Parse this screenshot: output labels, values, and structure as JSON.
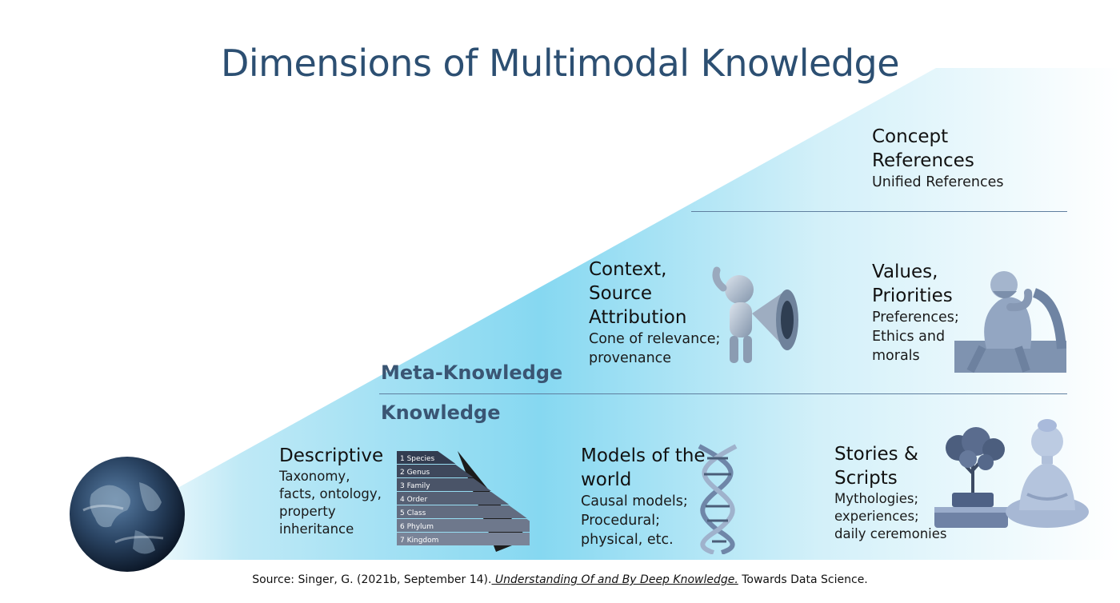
{
  "title": "Dimensions of Multimodal Knowledge",
  "levels": {
    "meta": "Meta-Knowledge",
    "knowledge": "Knowledge"
  },
  "blocks": {
    "concept": {
      "heading": "Concept\nReferences",
      "desc": "Unified References"
    },
    "context": {
      "heading": "Context,\nSource\nAttribution",
      "desc": "Cone of relevance;\nprovenance"
    },
    "values": {
      "heading": "Values,\nPriorities",
      "desc": "Preferences;\nEthics and\nmorals"
    },
    "descriptive": {
      "heading": "Descriptive",
      "desc": "Taxonomy,\nfacts, ontology,\nproperty\ninheritance"
    },
    "models": {
      "heading": "Models of the\nworld",
      "desc": "Causal models;\nProcedural;\nphysical, etc."
    },
    "stories": {
      "heading": "Stories &\nScripts",
      "desc": "Mythologies;\nexperiences;\ndaily ceremonies"
    }
  },
  "taxonomy_pyramid": {
    "levels": [
      {
        "num": "1",
        "label": "Species"
      },
      {
        "num": "2",
        "label": "Genus"
      },
      {
        "num": "3",
        "label": "Family"
      },
      {
        "num": "4",
        "label": "Order"
      },
      {
        "num": "5",
        "label": "Class"
      },
      {
        "num": "6",
        "label": "Phylum"
      },
      {
        "num": "7",
        "label": "Kingdom"
      }
    ]
  },
  "source": {
    "prefix": "Source: Singer, G. (2021b, September 14).",
    "link": " Understanding Of and By Deep Knowledge.",
    "suffix": " Towards Data Science."
  },
  "colors": {
    "title": "#2c4f72",
    "wedge_start": "#7ad3ef",
    "wedge_end": "#ffffff",
    "divider": "#5f7f9f",
    "level_label": "#3a5573"
  },
  "icons": [
    "earth-globe",
    "megaphone-figure",
    "thinker-statue",
    "taxonomy-pyramid",
    "dna-helix",
    "bonsai-book",
    "buddha-statue"
  ]
}
